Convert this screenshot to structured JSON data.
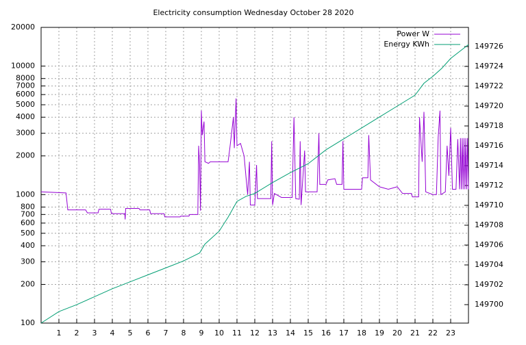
{
  "chart_data": {
    "type": "line",
    "title": "Electricity consumption Wednesday October 28 2020",
    "xlim": [
      0,
      24
    ],
    "xticks": [
      1,
      2,
      3,
      4,
      5,
      6,
      7,
      8,
      9,
      10,
      11,
      12,
      13,
      14,
      15,
      16,
      17,
      18,
      19,
      20,
      21,
      22,
      23
    ],
    "ylim": [
      100,
      20000
    ],
    "log_y": true,
    "yticks": [
      100,
      200,
      300,
      400,
      500,
      600,
      700,
      800,
      1000,
      2000,
      3000,
      4000,
      5000,
      6000,
      7000,
      8000,
      10000,
      20000
    ],
    "y2lim": [
      149698.14,
      149727.93
    ],
    "y2ticks": [
      149700,
      149702,
      149704,
      149706,
      149708,
      149710,
      149712,
      149714,
      149716,
      149718,
      149720,
      149722,
      149724,
      149726
    ],
    "grid": true,
    "legend": "top-right",
    "series": [
      {
        "name": "Power W",
        "color": "#9400d3",
        "x": [
          0,
          1.4,
          1.5,
          2.5,
          2.6,
          3.2,
          3.25,
          3.9,
          3.95,
          4.7,
          4.72,
          4.75,
          5.5,
          5.55,
          6.1,
          6.15,
          6.9,
          6.95,
          7.8,
          7.85,
          8.3,
          8.35,
          8.8,
          8.85,
          8.9,
          8.95,
          9.0,
          9.05,
          9.15,
          9.2,
          9.4,
          9.5,
          10.5,
          10.6,
          10.8,
          10.85,
          10.95,
          11.0,
          11.2,
          11.4,
          11.5,
          11.6,
          11.7,
          11.75,
          12.0,
          12.1,
          12.15,
          12.9,
          12.95,
          13.0,
          13.1,
          13.5,
          14.1,
          14.2,
          14.3,
          14.5,
          14.55,
          14.6,
          14.8,
          14.85,
          15.5,
          15.6,
          15.65,
          16.0,
          16.1,
          16.5,
          16.6,
          16.9,
          16.95,
          17.0,
          18.0,
          18.05,
          18.35,
          18.4,
          18.5,
          19.0,
          19.5,
          20.0,
          20.3,
          20.8,
          20.85,
          21.2,
          21.25,
          21.4,
          21.5,
          21.6,
          22.0,
          22.2,
          22.3,
          22.4,
          22.45,
          22.7,
          22.8,
          22.9,
          23.0,
          23.1,
          23.3,
          23.4,
          23.5,
          23.55,
          23.6,
          23.65,
          23.7,
          23.75,
          23.8,
          23.85,
          23.9,
          23.95,
          24
        ],
        "values": [
          1050,
          1030,
          760,
          760,
          720,
          720,
          770,
          770,
          710,
          710,
          640,
          780,
          780,
          760,
          760,
          710,
          710,
          670,
          670,
          680,
          680,
          700,
          700,
          2400,
          1700,
          750,
          4500,
          2900,
          3700,
          1800,
          1750,
          1800,
          1800,
          2300,
          4000,
          2300,
          5600,
          2400,
          2500,
          2000,
          1400,
          1000,
          1800,
          830,
          830,
          1700,
          930,
          930,
          2600,
          830,
          1020,
          950,
          950,
          4000,
          930,
          920,
          2600,
          830,
          2200,
          1050,
          1050,
          3000,
          1200,
          1200,
          1300,
          1330,
          1200,
          1200,
          2600,
          1100,
          1100,
          1350,
          1350,
          2900,
          1300,
          1150,
          1100,
          1150,
          1020,
          1020,
          960,
          960,
          4000,
          1800,
          4400,
          1050,
          1000,
          1000,
          2800,
          4500,
          1000,
          1050,
          2400,
          1400,
          3300,
          1100,
          1100,
          2700,
          1100,
          2750,
          1100,
          2750,
          1100,
          2750,
          1100,
          2750,
          1100,
          2750,
          1100
        ]
      },
      {
        "name": "Energy KWh",
        "color": "#009e73",
        "axis": "y2",
        "x": [
          0,
          1,
          2,
          3,
          4,
          5,
          6,
          7,
          8,
          8.9,
          9.2,
          10,
          10.5,
          11,
          11.5,
          12,
          13,
          14,
          15,
          16,
          17,
          18,
          19,
          20,
          21,
          21.5,
          22,
          22.5,
          23,
          24
        ],
        "values": [
          149698.14,
          149699.3,
          149700.0,
          149700.8,
          149701.6,
          149702.3,
          149703.0,
          149703.7,
          149704.4,
          149705.2,
          149706.1,
          149707.4,
          149708.8,
          149710.4,
          149710.9,
          149711.2,
          149712.3,
          149713.3,
          149714.2,
          149715.6,
          149716.7,
          149717.8,
          149718.9,
          149720.0,
          149721.1,
          149722.3,
          149723.0,
          149723.8,
          149724.8,
          149726.2
        ]
      }
    ]
  }
}
